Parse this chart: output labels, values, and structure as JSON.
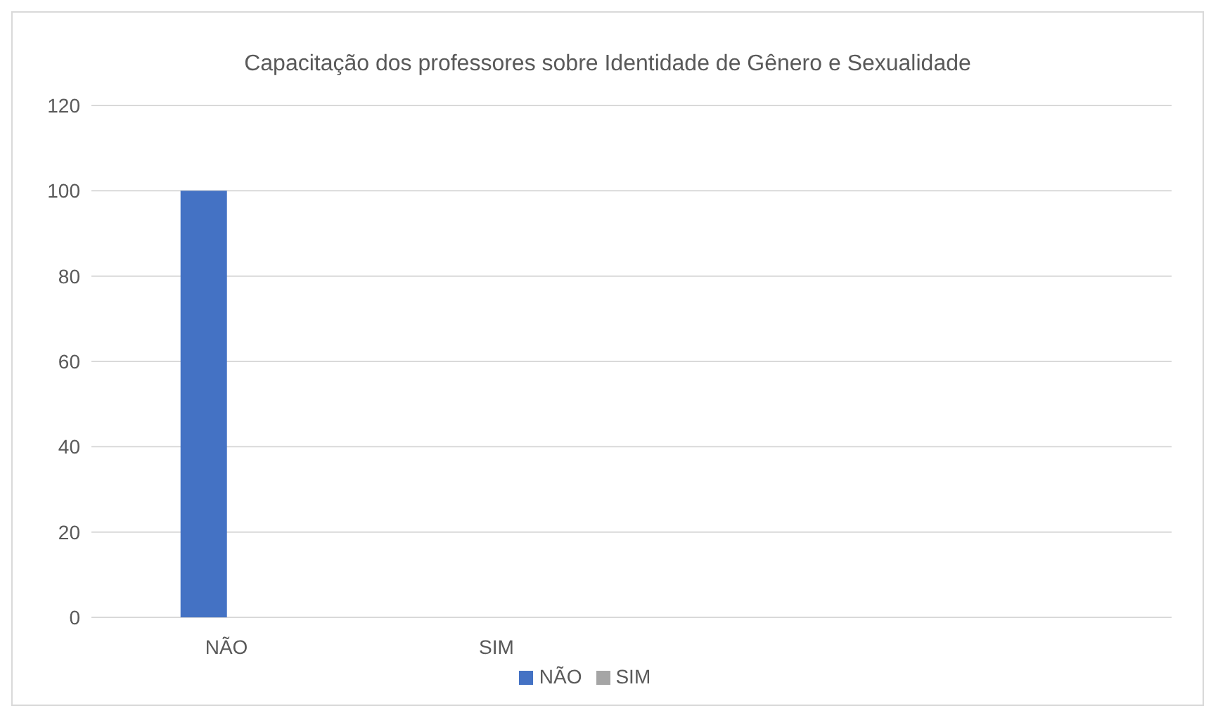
{
  "chart_data": {
    "type": "bar",
    "title": "Capacitação dos professores sobre Identidade de Gênero e Sexualidade",
    "categories": [
      "NÃO",
      "SIM",
      null,
      null
    ],
    "series": [
      {
        "name": "NÃO",
        "color": "#4472c4",
        "values": [
          100,
          0,
          null,
          null
        ]
      },
      {
        "name": "SIM",
        "color": "#a5a5a5",
        "values": [
          0,
          0,
          null,
          null
        ]
      }
    ],
    "ylim": [
      0,
      120
    ],
    "yticks": [
      0,
      20,
      40,
      60,
      80,
      100,
      120
    ],
    "grid": "y",
    "legend": "bottom"
  }
}
